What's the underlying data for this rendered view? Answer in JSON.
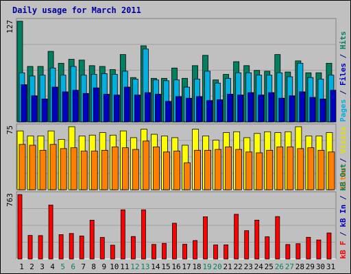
{
  "chart_data": {
    "title": "Daily usage for March 2011",
    "type": "bar",
    "x_days": [
      "1",
      "2",
      "3",
      "4",
      "5",
      "6",
      "7",
      "8",
      "9",
      "10",
      "11",
      "12",
      "13",
      "14",
      "15",
      "16",
      "17",
      "18",
      "19",
      "20",
      "21",
      "22",
      "23",
      "24",
      "25",
      "26",
      "27",
      "28",
      "29",
      "30",
      "31"
    ],
    "weekend_days": [
      "5",
      "6",
      "12",
      "13",
      "19",
      "20",
      "26",
      "27"
    ],
    "panels": [
      {
        "id": "hits-files-pages",
        "ymax": 127,
        "ymax_label": "127",
        "right_labels": [
          {
            "text": "Pages",
            "color": "#00b0e0"
          },
          {
            "text": " / ",
            "color": "#000080"
          },
          {
            "text": "Files",
            "color": "#0000c0"
          },
          {
            "text": " / ",
            "color": "#000080"
          },
          {
            "text": "Hits",
            "color": "#008060"
          }
        ],
        "series": [
          {
            "name": "Hits",
            "color": "#008060",
            "values": [
              127,
              70,
              70,
              89,
              74,
              79,
              78,
              71,
              70,
              66,
              85,
              56,
              96,
              55,
              55,
              68,
              55,
              71,
              84,
              53,
              60,
              76,
              71,
              65,
              64,
              85,
              63,
              77,
              62,
              62,
              74
            ]
          },
          {
            "name": "Files",
            "color": "#00b0e0",
            "values": [
              62,
              58,
              59,
              68,
              59,
              70,
              59,
              60,
              61,
              60,
              64,
              54,
              92,
              53,
              52,
              53,
              44,
              54,
              64,
              49,
              55,
              62,
              62,
              59,
              59,
              62,
              57,
              74,
              56,
              54,
              59
            ]
          },
          {
            "name": "Pages",
            "color": "#0000c0",
            "values": [
              47,
              33,
              29,
              44,
              38,
              40,
              36,
              43,
              35,
              34,
              44,
              34,
              37,
              35,
              26,
              32,
              30,
              32,
              27,
              28,
              35,
              34,
              37,
              34,
              37,
              30,
              33,
              38,
              31,
              29,
              40
            ]
          }
        ]
      },
      {
        "id": "visits-sites",
        "ymax": 75,
        "ymax_label": "75",
        "right_labels": [
          {
            "text": "Sites",
            "color": "#ff8000"
          },
          {
            "text": " / ",
            "color": "#000080"
          },
          {
            "text": "Visits",
            "color": "#e0e000"
          }
        ],
        "series": [
          {
            "name": "Visits",
            "color": "#ffff00",
            "values": [
              70,
              64,
              64,
              70,
              60,
              75,
              64,
              65,
              68,
              65,
              70,
              62,
              72,
              66,
              64,
              62,
              53,
              72,
              64,
              59,
              68,
              69,
              62,
              67,
              69,
              68,
              69,
              75,
              64,
              64,
              68
            ]
          },
          {
            "name": "Sites",
            "color": "#ff8000",
            "values": [
              54,
              53,
              47,
              54,
              49,
              50,
              46,
              46,
              47,
              51,
              50,
              48,
              58,
              51,
              45,
              46,
              32,
              47,
              47,
              48,
              51,
              48,
              45,
              44,
              47,
              51,
              51,
              49,
              50,
              47,
              45
            ]
          }
        ]
      },
      {
        "id": "kbytes",
        "ymax": 763,
        "ymax_label": "763",
        "right_labels": [
          {
            "text": "kB F",
            "color": "#ff0000"
          },
          {
            "text": " / ",
            "color": "#000080"
          },
          {
            "text": "kB In",
            "color": "#0000c0"
          },
          {
            "text": " / ",
            "color": "#000080"
          },
          {
            "text": "kB Out",
            "color": "#008060"
          }
        ],
        "series": [
          {
            "name": "kB F",
            "color": "#ff0000",
            "values": [
              763,
              279,
              277,
              639,
              288,
              302,
              272,
              459,
              255,
              163,
              582,
              266,
              582,
              172,
              185,
              423,
              174,
              218,
              500,
              166,
              167,
              529,
              335,
              460,
              263,
              502,
              171,
              181,
              257,
              225,
              308
            ]
          }
        ]
      }
    ]
  }
}
